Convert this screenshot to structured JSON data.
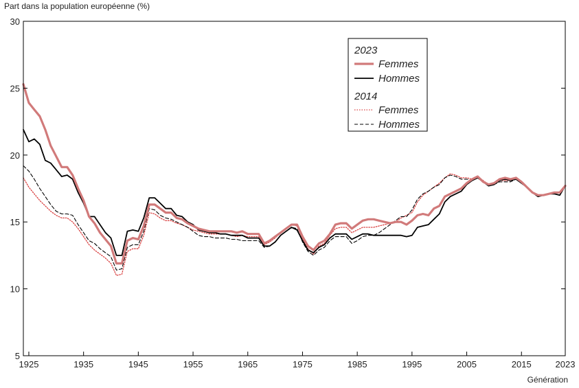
{
  "chart_data": {
    "type": "line",
    "title": "",
    "ylabel": "Part dans la population européenne (%)",
    "xlabel": "Génération",
    "xlim": [
      1924,
      2023
    ],
    "ylim": [
      5,
      30
    ],
    "x_ticks": [
      "1925",
      "1935",
      "1945",
      "1955",
      "1965",
      "1975",
      "1985",
      "1995",
      "2005",
      "2015",
      "2023"
    ],
    "y_ticks": [
      "5",
      "10",
      "15",
      "20",
      "25",
      "30"
    ],
    "grid": false,
    "legend": {
      "placement": "top-right",
      "groups": [
        {
          "title": "2023",
          "entries": [
            "Femmes",
            "Hommes"
          ]
        },
        {
          "title": "2014",
          "entries": [
            "Femmes",
            "Hommes"
          ]
        }
      ]
    },
    "series": [
      {
        "name": "Femmes",
        "group": "2023",
        "color": "#d17a7a",
        "style": "solid-thick",
        "x": [
          1924,
          1925,
          1926,
          1927,
          1928,
          1929,
          1930,
          1931,
          1932,
          1933,
          1934,
          1935,
          1936,
          1937,
          1938,
          1939,
          1940,
          1941,
          1942,
          1943,
          1944,
          1945,
          1946,
          1947,
          1948,
          1949,
          1950,
          1951,
          1952,
          1953,
          1954,
          1955,
          1956,
          1957,
          1958,
          1959,
          1960,
          1961,
          1962,
          1963,
          1964,
          1965,
          1966,
          1967,
          1968,
          1969,
          1970,
          1971,
          1972,
          1973,
          1974,
          1975,
          1976,
          1977,
          1978,
          1979,
          1980,
          1981,
          1982,
          1983,
          1984,
          1985,
          1986,
          1987,
          1988,
          1989,
          1990,
          1991,
          1992,
          1993,
          1994,
          1995,
          1996,
          1997,
          1998,
          1999,
          2000,
          2001,
          2002,
          2003,
          2004,
          2005,
          2006,
          2007,
          2008,
          2009,
          2010,
          2011,
          2012,
          2013,
          2014,
          2015,
          2016,
          2017,
          2018,
          2019,
          2020,
          2021,
          2022,
          2023
        ],
        "y": [
          25.3,
          23.9,
          23.4,
          22.9,
          21.9,
          20.7,
          19.9,
          19.1,
          19.1,
          18.5,
          17.5,
          16.6,
          15.4,
          14.9,
          14.2,
          13.7,
          13.2,
          11.9,
          11.9,
          13.6,
          13.8,
          13.7,
          14.7,
          16.3,
          16.3,
          16.0,
          15.7,
          15.7,
          15.3,
          15.2,
          14.9,
          14.7,
          14.5,
          14.4,
          14.3,
          14.3,
          14.3,
          14.3,
          14.3,
          14.2,
          14.3,
          14.1,
          14.1,
          14.1,
          13.4,
          13.6,
          13.9,
          14.2,
          14.5,
          14.8,
          14.8,
          13.9,
          13.2,
          12.9,
          13.4,
          13.6,
          14.1,
          14.8,
          14.9,
          14.9,
          14.5,
          14.8,
          15.1,
          15.2,
          15.2,
          15.1,
          15.0,
          14.9,
          15.0,
          15.0,
          14.8,
          15.1,
          15.5,
          15.6,
          15.5,
          16.0,
          16.2,
          16.9,
          17.1,
          17.3,
          17.5,
          17.9,
          18.2,
          18.4,
          18.0,
          17.8,
          17.9,
          18.2,
          18.3,
          18.2,
          18.3,
          18.0,
          17.6,
          17.2,
          17.0,
          17.0,
          17.1,
          17.2,
          17.2,
          17.7
        ]
      },
      {
        "name": "Hommes",
        "group": "2023",
        "color": "#000000",
        "style": "solid",
        "x": [
          1924,
          1925,
          1926,
          1927,
          1928,
          1929,
          1930,
          1931,
          1932,
          1933,
          1934,
          1935,
          1936,
          1937,
          1938,
          1939,
          1940,
          1941,
          1942,
          1943,
          1944,
          1945,
          1946,
          1947,
          1948,
          1949,
          1950,
          1951,
          1952,
          1953,
          1954,
          1955,
          1956,
          1957,
          1958,
          1959,
          1960,
          1961,
          1962,
          1963,
          1964,
          1965,
          1966,
          1967,
          1968,
          1969,
          1970,
          1971,
          1972,
          1973,
          1974,
          1975,
          1976,
          1977,
          1978,
          1979,
          1980,
          1981,
          1982,
          1983,
          1984,
          1985,
          1986,
          1987,
          1988,
          1989,
          1990,
          1991,
          1992,
          1993,
          1994,
          1995,
          1996,
          1997,
          1998,
          1999,
          2000,
          2001,
          2002,
          2003,
          2004,
          2005,
          2006,
          2007,
          2008,
          2009,
          2010,
          2011,
          2012,
          2013,
          2014,
          2015,
          2016,
          2017,
          2018,
          2019,
          2020,
          2021,
          2022,
          2023
        ],
        "y": [
          21.9,
          21.0,
          21.2,
          20.8,
          19.6,
          19.4,
          18.9,
          18.4,
          18.5,
          18.2,
          17.2,
          16.4,
          15.4,
          15.4,
          14.8,
          14.2,
          13.8,
          12.5,
          12.5,
          14.3,
          14.4,
          14.3,
          15.3,
          16.8,
          16.8,
          16.4,
          16.0,
          16.0,
          15.5,
          15.4,
          15.0,
          14.8,
          14.4,
          14.3,
          14.2,
          14.2,
          14.1,
          14.1,
          14.0,
          14.0,
          14.0,
          13.8,
          13.8,
          13.8,
          13.2,
          13.2,
          13.5,
          14.0,
          14.3,
          14.6,
          14.4,
          13.6,
          12.9,
          12.7,
          13.1,
          13.3,
          13.8,
          14.1,
          14.1,
          14.1,
          13.7,
          13.9,
          14.1,
          14.1,
          14.0,
          14.0,
          14.0,
          14.0,
          14.0,
          14.0,
          13.9,
          14.0,
          14.6,
          14.7,
          14.8,
          15.2,
          15.6,
          16.5,
          16.9,
          17.1,
          17.3,
          17.8,
          18.1,
          18.3,
          18.0,
          17.7,
          17.8,
          18.1,
          18.2,
          18.1,
          18.2,
          17.9,
          17.6,
          17.2,
          16.9,
          17.0,
          17.1,
          17.1,
          17.0,
          17.7
        ]
      },
      {
        "name": "Femmes",
        "group": "2014",
        "color": "#d94040",
        "style": "dotted",
        "x": [
          1924,
          1925,
          1926,
          1927,
          1928,
          1929,
          1930,
          1931,
          1932,
          1933,
          1934,
          1935,
          1936,
          1937,
          1938,
          1939,
          1940,
          1941,
          1942,
          1943,
          1944,
          1945,
          1946,
          1947,
          1948,
          1949,
          1950,
          1951,
          1952,
          1953,
          1954,
          1955,
          1956,
          1957,
          1958,
          1959,
          1960,
          1961,
          1962,
          1963,
          1964,
          1965,
          1966,
          1967,
          1968,
          1969,
          1970,
          1971,
          1972,
          1973,
          1974,
          1975,
          1976,
          1977,
          1978,
          1979,
          1980,
          1981,
          1982,
          1983,
          1984,
          1985,
          1986,
          1987,
          1988,
          1989,
          1990,
          1991,
          1992,
          1993,
          1994,
          1995,
          1996,
          1997,
          1998,
          1999,
          2000,
          2001,
          2002,
          2003,
          2004,
          2005,
          2006,
          2007,
          2008,
          2009,
          2010,
          2011,
          2012,
          2013,
          2014
        ],
        "y": [
          18.3,
          17.6,
          17.1,
          16.6,
          16.2,
          15.8,
          15.5,
          15.3,
          15.3,
          15.0,
          14.5,
          13.9,
          13.3,
          12.9,
          12.6,
          12.3,
          11.9,
          11.0,
          11.1,
          12.8,
          13.0,
          13.0,
          14.0,
          15.7,
          15.6,
          15.3,
          15.1,
          15.1,
          14.9,
          14.8,
          14.6,
          14.4,
          14.3,
          14.2,
          14.1,
          14.1,
          14.1,
          14.1,
          14.0,
          13.9,
          14.0,
          13.9,
          13.9,
          13.9,
          13.3,
          13.5,
          13.8,
          14.2,
          14.5,
          14.8,
          14.7,
          13.7,
          13.0,
          12.6,
          13.2,
          13.4,
          14.0,
          14.5,
          14.6,
          14.6,
          14.2,
          14.4,
          14.6,
          14.6,
          14.6,
          14.7,
          14.8,
          14.9,
          15.0,
          15.3,
          15.5,
          15.7,
          16.5,
          17.0,
          17.3,
          17.6,
          17.9,
          18.3,
          18.6,
          18.5,
          18.3,
          18.3,
          18.2,
          18.4,
          18.1,
          17.8,
          17.9,
          18.1,
          18.1,
          18.1,
          18.3
        ]
      },
      {
        "name": "Hommes",
        "group": "2014",
        "color": "#000000",
        "style": "dashed",
        "x": [
          1924,
          1925,
          1926,
          1927,
          1928,
          1929,
          1930,
          1931,
          1932,
          1933,
          1934,
          1935,
          1936,
          1937,
          1938,
          1939,
          1940,
          1941,
          1942,
          1943,
          1944,
          1945,
          1946,
          1947,
          1948,
          1949,
          1950,
          1951,
          1952,
          1953,
          1954,
          1955,
          1956,
          1957,
          1958,
          1959,
          1960,
          1961,
          1962,
          1963,
          1964,
          1965,
          1966,
          1967,
          1968,
          1969,
          1970,
          1971,
          1972,
          1973,
          1974,
          1975,
          1976,
          1977,
          1978,
          1979,
          1980,
          1981,
          1982,
          1983,
          1984,
          1985,
          1986,
          1987,
          1988,
          1989,
          1990,
          1991,
          1992,
          1993,
          1994,
          1995,
          1996,
          1997,
          1998,
          1999,
          2000,
          2001,
          2002,
          2003,
          2004,
          2005,
          2006,
          2007,
          2008,
          2009,
          2010,
          2011,
          2012,
          2013,
          2014
        ],
        "y": [
          19.2,
          18.8,
          18.2,
          17.5,
          16.9,
          16.3,
          15.8,
          15.6,
          15.6,
          15.5,
          14.8,
          14.2,
          13.6,
          13.4,
          13.0,
          12.7,
          12.4,
          11.4,
          11.5,
          13.1,
          13.3,
          13.3,
          14.3,
          16.0,
          15.9,
          15.5,
          15.3,
          15.2,
          15.0,
          14.8,
          14.6,
          14.3,
          14.0,
          13.9,
          13.9,
          13.8,
          13.8,
          13.8,
          13.7,
          13.7,
          13.6,
          13.6,
          13.6,
          13.6,
          13.1,
          13.2,
          13.5,
          14.0,
          14.3,
          14.6,
          14.5,
          13.5,
          12.8,
          12.5,
          12.9,
          13.1,
          13.6,
          13.9,
          13.9,
          13.9,
          13.4,
          13.6,
          13.9,
          14.0,
          14.0,
          14.2,
          14.5,
          14.8,
          15.1,
          15.4,
          15.4,
          15.9,
          16.7,
          17.1,
          17.3,
          17.6,
          17.8,
          18.3,
          18.5,
          18.4,
          18.2,
          18.2,
          18.1,
          18.3,
          18.0,
          17.7,
          17.8,
          18.0,
          18.0,
          18.0,
          18.2
        ]
      }
    ]
  }
}
